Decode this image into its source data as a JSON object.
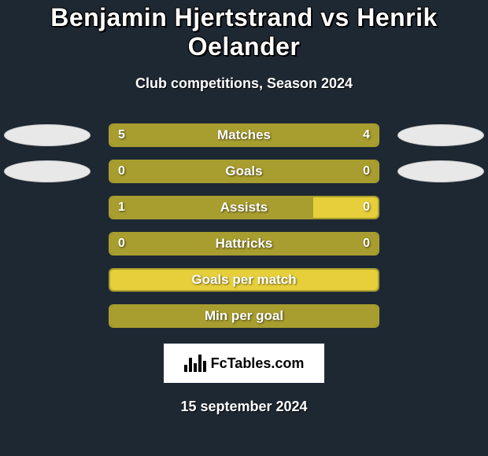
{
  "title": "Benjamin Hjertstrand vs Henrik Oelander",
  "subtitle": "Club competitions, Season 2024",
  "date": "15 september 2024",
  "brand": "FcTables.com",
  "colors": {
    "background": "#1e2833",
    "left_fill": "#a89d2f",
    "right_fill": "#e6cf3a",
    "border": "#a89d2f",
    "ellipse_bg": "#e8e8e8"
  },
  "stats": [
    {
      "label": "Matches",
      "left_val": "5",
      "right_val": "4",
      "left_pct": 100,
      "right_pct": 0,
      "show_ellipses": true,
      "show_vals": true
    },
    {
      "label": "Goals",
      "left_val": "0",
      "right_val": "0",
      "left_pct": 100,
      "right_pct": 0,
      "show_ellipses": true,
      "show_vals": true
    },
    {
      "label": "Assists",
      "left_val": "1",
      "right_val": "0",
      "left_pct": 76,
      "right_pct": 24,
      "show_ellipses": false,
      "show_vals": true
    },
    {
      "label": "Hattricks",
      "left_val": "0",
      "right_val": "0",
      "left_pct": 100,
      "right_pct": 0,
      "show_ellipses": false,
      "show_vals": true
    },
    {
      "label": "Goals per match",
      "left_val": "",
      "right_val": "",
      "left_pct": 0,
      "right_pct": 100,
      "show_ellipses": false,
      "show_vals": false
    },
    {
      "label": "Min per goal",
      "left_val": "",
      "right_val": "",
      "left_pct": 100,
      "right_pct": 0,
      "show_ellipses": false,
      "show_vals": false
    }
  ]
}
